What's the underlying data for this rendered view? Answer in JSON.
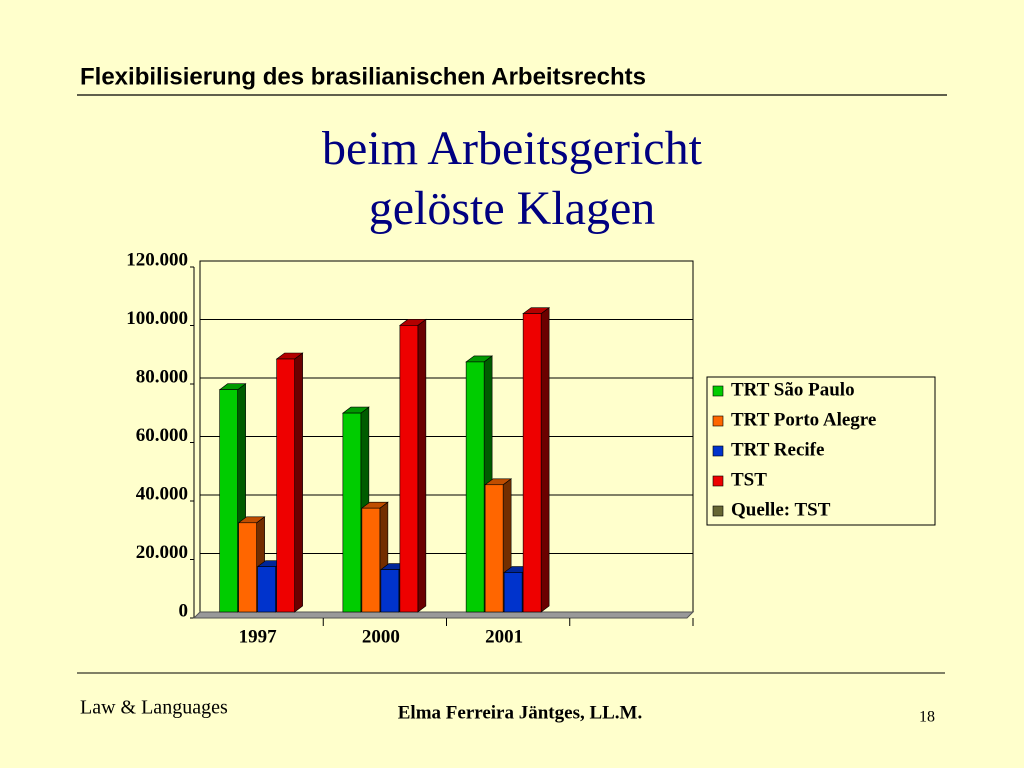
{
  "slide": {
    "header": "Flexibilisierung des brasilianischen Arbeitsrechts",
    "footer_left": "Law & Languages",
    "footer_center": "Elma Ferreira Jäntges, LL.M.",
    "page_number": "18"
  },
  "chart_data": {
    "type": "bar3d",
    "title": [
      "beim Arbeitsgericht",
      "gelöste Klagen"
    ],
    "categories": [
      "1997",
      "2000",
      "2001",
      null
    ],
    "series": [
      {
        "name": "TRT São Paulo",
        "color": "#00cc00",
        "values": [
          76000,
          68000,
          85500,
          null
        ]
      },
      {
        "name": "TRT Porto Alegre",
        "color": "#ff6600",
        "values": [
          30500,
          35500,
          43500,
          null
        ]
      },
      {
        "name": "TRT Recife",
        "color": "#0033cc",
        "values": [
          15500,
          14500,
          13500,
          null
        ]
      },
      {
        "name": "TST",
        "color": "#ee0000",
        "values": [
          86500,
          98000,
          102000,
          null
        ]
      },
      {
        "name": "Quelle: TST",
        "color": "#666633",
        "values": [
          null,
          null,
          null,
          null
        ]
      }
    ],
    "ylim": [
      0,
      120000
    ],
    "yticks": [
      0,
      {
        "value": 20000,
        "label": "20.000"
      },
      {
        "value": 40000,
        "label": "40.000"
      },
      {
        "value": 60000,
        "label": "60.000"
      },
      {
        "value": 80000,
        "label": "80.000"
      },
      {
        "value": 100000,
        "label": "100.000"
      },
      {
        "value": 120000,
        "label": "120.000"
      }
    ],
    "grid": true
  }
}
